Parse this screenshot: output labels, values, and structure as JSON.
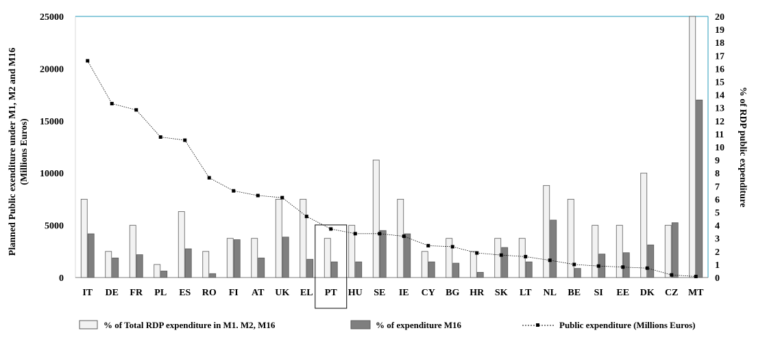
{
  "chart_data": {
    "type": "bar",
    "categories": [
      "IT",
      "DE",
      "FR",
      "PL",
      "ES",
      "RO",
      "FI",
      "AT",
      "UK",
      "EL",
      "PT",
      "HU",
      "SE",
      "IE",
      "CY",
      "BG",
      "HR",
      "SK",
      "LT",
      "NL",
      "BE",
      "SI",
      "EE",
      "DK",
      "CZ",
      "MT"
    ],
    "series": [
      {
        "name": "% of Total RDP expenditure in M1. M2, M16",
        "axis": "right",
        "values": [
          6.0,
          2.0,
          4.0,
          1.0,
          5.05,
          2.0,
          3.0,
          3.0,
          6.0,
          6.0,
          3.0,
          4.0,
          9.0,
          6.0,
          2.0,
          3.0,
          2.0,
          3.0,
          3.0,
          7.05,
          6.0,
          4.0,
          4.0,
          8.0,
          4.0,
          20.0
        ],
        "color": "#f2f2f2"
      },
      {
        "name": "% of expenditure  M16",
        "axis": "right",
        "values": [
          3.35,
          1.5,
          1.75,
          0.5,
          2.2,
          0.3,
          2.9,
          1.5,
          3.1,
          1.4,
          1.2,
          1.2,
          3.6,
          3.35,
          1.2,
          1.1,
          0.4,
          2.3,
          1.2,
          4.4,
          0.7,
          1.8,
          1.9,
          2.5,
          4.2,
          13.6
        ],
        "color": "#7f7f7f"
      },
      {
        "name": "Public expenditure (Millions Euros)",
        "axis": "left",
        "type": "line",
        "values": [
          20750,
          16650,
          16050,
          13450,
          13150,
          9550,
          8300,
          7850,
          7650,
          5850,
          4650,
          4200,
          4200,
          3950,
          3050,
          2950,
          2350,
          2150,
          2000,
          1650,
          1250,
          1100,
          1000,
          900,
          250,
          100
        ],
        "color": "#000000"
      }
    ],
    "ylabel": "Planned Public exenditure under M1, M2 and M16 (Millions  Euros)",
    "ylabel_lines": [
      "Planned Public exenditure under M1, M2 and M16",
      "(Millions  Euros)"
    ],
    "y2label": "% of RDP public expenditure",
    "ylim": [
      0,
      25000
    ],
    "yticks": [
      "0",
      "5000",
      "10000",
      "15000",
      "20000",
      "25000"
    ],
    "y2lim": [
      0,
      20
    ],
    "y2ticks": [
      "0",
      "1",
      "2",
      "3",
      "4",
      "5",
      "6",
      "7",
      "8",
      "9",
      "10",
      "11",
      "12",
      "13",
      "14",
      "15",
      "16",
      "17",
      "18",
      "19",
      "20"
    ],
    "highlight": "PT",
    "legend_position": "bottom",
    "grid": false
  }
}
